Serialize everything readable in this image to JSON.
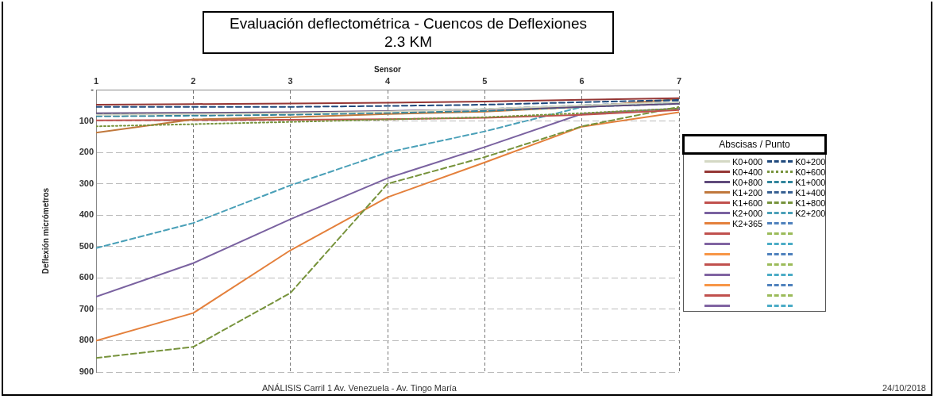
{
  "chart_data": {
    "type": "line",
    "title": "Evaluación deflectométrica - Cuencos de Deflexiones\n2.3 KM",
    "xlabel": "Sensor",
    "ylabel": "Deflexión micrómetros",
    "legend_title": "Abscisas / Punto",
    "legend": "right",
    "grid": true,
    "x": [
      1,
      2,
      3,
      4,
      5,
      6,
      7
    ],
    "xlim": [
      1,
      7
    ],
    "xticks": [
      1,
      2,
      3,
      4,
      5,
      6,
      7
    ],
    "ylim": [
      900,
      0
    ],
    "yticks": [
      {
        "value": 0,
        "label": "-"
      },
      100,
      200,
      300,
      400,
      500,
      600,
      700,
      800,
      900
    ],
    "series": [
      {
        "name": "K0+000",
        "color": "#d4d8c4",
        "line_style": "solid",
        "values": [
          80,
          78,
          75,
          70,
          62,
          50,
          40
        ]
      },
      {
        "name": "K0+200",
        "color": "#1f497d",
        "line_style": "dashed",
        "values": [
          55,
          55,
          55,
          52,
          48,
          40,
          33
        ]
      },
      {
        "name": "K0+400",
        "color": "#953735",
        "line_style": "solid",
        "values": [
          48,
          46,
          44,
          42,
          38,
          32,
          27
        ]
      },
      {
        "name": "K0+600",
        "color": "#77933c",
        "line_style": "dotted",
        "values": [
          117,
          110,
          103,
          95,
          88,
          75,
          60
        ]
      },
      {
        "name": "K0+800",
        "color": "#604a7b",
        "line_style": "solid",
        "values": [
          75,
          74,
          72,
          68,
          63,
          55,
          45
        ]
      },
      {
        "name": "K1+000",
        "color": "#31859c",
        "line_style": "dashed",
        "values": [
          85,
          83,
          80,
          74,
          68,
          55,
          40
        ]
      },
      {
        "name": "K1+200",
        "color": "#c0783c",
        "line_style": "solid",
        "values": [
          137,
          95,
          88,
          78,
          70,
          55,
          30
        ]
      },
      {
        "name": "K1+400",
        "color": "#376092",
        "line_style": "dashed",
        "values": [
          78,
          77,
          75,
          70,
          62,
          50,
          38
        ]
      },
      {
        "name": "K1+600",
        "color": "#c0504d",
        "line_style": "solid",
        "values": [
          98,
          97,
          96,
          94,
          90,
          80,
          65
        ]
      },
      {
        "name": "K1+800",
        "color": "#77933c",
        "line_style": "dashed",
        "values": [
          855,
          820,
          648,
          300,
          215,
          117,
          55
        ]
      },
      {
        "name": "K2+000",
        "color": "#7a62a0",
        "line_style": "solid",
        "values": [
          660,
          553,
          413,
          282,
          183,
          77,
          60
        ]
      },
      {
        "name": "K2+200",
        "color": "#4aa0b8",
        "line_style": "dashed",
        "values": [
          505,
          425,
          305,
          200,
          133,
          55,
          45
        ]
      },
      {
        "name": "K2+365",
        "color": "#e4803c",
        "line_style": "solid",
        "values": [
          800,
          712,
          512,
          343,
          232,
          118,
          72
        ]
      },
      {
        "color": "#4f81bd",
        "line_style": "dashed",
        "values": [
          null,
          null,
          null,
          null,
          null,
          null,
          null
        ]
      },
      {
        "color": "#c0504d",
        "line_style": "solid",
        "values": [
          null,
          null,
          null,
          null,
          null,
          null,
          null
        ]
      },
      {
        "color": "#9bbb59",
        "line_style": "dashed",
        "values": [
          null,
          null,
          null,
          null,
          null,
          null,
          null
        ]
      },
      {
        "color": "#8064a2",
        "line_style": "solid",
        "values": [
          null,
          null,
          null,
          null,
          null,
          null,
          null
        ]
      },
      {
        "color": "#4bacc6",
        "line_style": "dashed",
        "values": [
          null,
          null,
          null,
          null,
          null,
          null,
          null
        ]
      },
      {
        "color": "#f79646",
        "line_style": "solid",
        "values": [
          null,
          null,
          null,
          null,
          null,
          null,
          null
        ]
      },
      {
        "color": "#4f81bd",
        "line_style": "dashed",
        "values": [
          null,
          null,
          null,
          null,
          null,
          null,
          null
        ]
      },
      {
        "color": "#c0504d",
        "line_style": "solid",
        "values": [
          null,
          null,
          null,
          null,
          null,
          null,
          null
        ]
      },
      {
        "color": "#9bbb59",
        "line_style": "dashed",
        "values": [
          null,
          null,
          null,
          null,
          null,
          null,
          null
        ]
      },
      {
        "color": "#8064a2",
        "line_style": "solid",
        "values": [
          null,
          null,
          null,
          null,
          null,
          null,
          null
        ]
      },
      {
        "color": "#4bacc6",
        "line_style": "dashed",
        "values": [
          null,
          null,
          null,
          null,
          null,
          null,
          null
        ]
      },
      {
        "color": "#f79646",
        "line_style": "solid",
        "values": [
          null,
          null,
          null,
          null,
          null,
          null,
          null
        ]
      },
      {
        "color": "#4f81bd",
        "line_style": "dashed",
        "values": [
          null,
          null,
          null,
          null,
          null,
          null,
          null
        ]
      },
      {
        "color": "#c0504d",
        "line_style": "solid",
        "values": [
          null,
          null,
          null,
          null,
          null,
          null,
          null
        ]
      },
      {
        "color": "#9bbb59",
        "line_style": "dashed",
        "values": [
          null,
          null,
          null,
          null,
          null,
          null,
          null
        ]
      },
      {
        "color": "#8064a2",
        "line_style": "solid",
        "values": [
          null,
          null,
          null,
          null,
          null,
          null,
          null
        ]
      },
      {
        "color": "#4bacc6",
        "line_style": "dashed",
        "values": [
          null,
          null,
          null,
          null,
          null,
          null,
          null
        ]
      }
    ],
    "annotations": [
      "ANÁLISIS Carril 1 Av. Venezuela - Av. Tingo María",
      "24/10/2018"
    ]
  }
}
